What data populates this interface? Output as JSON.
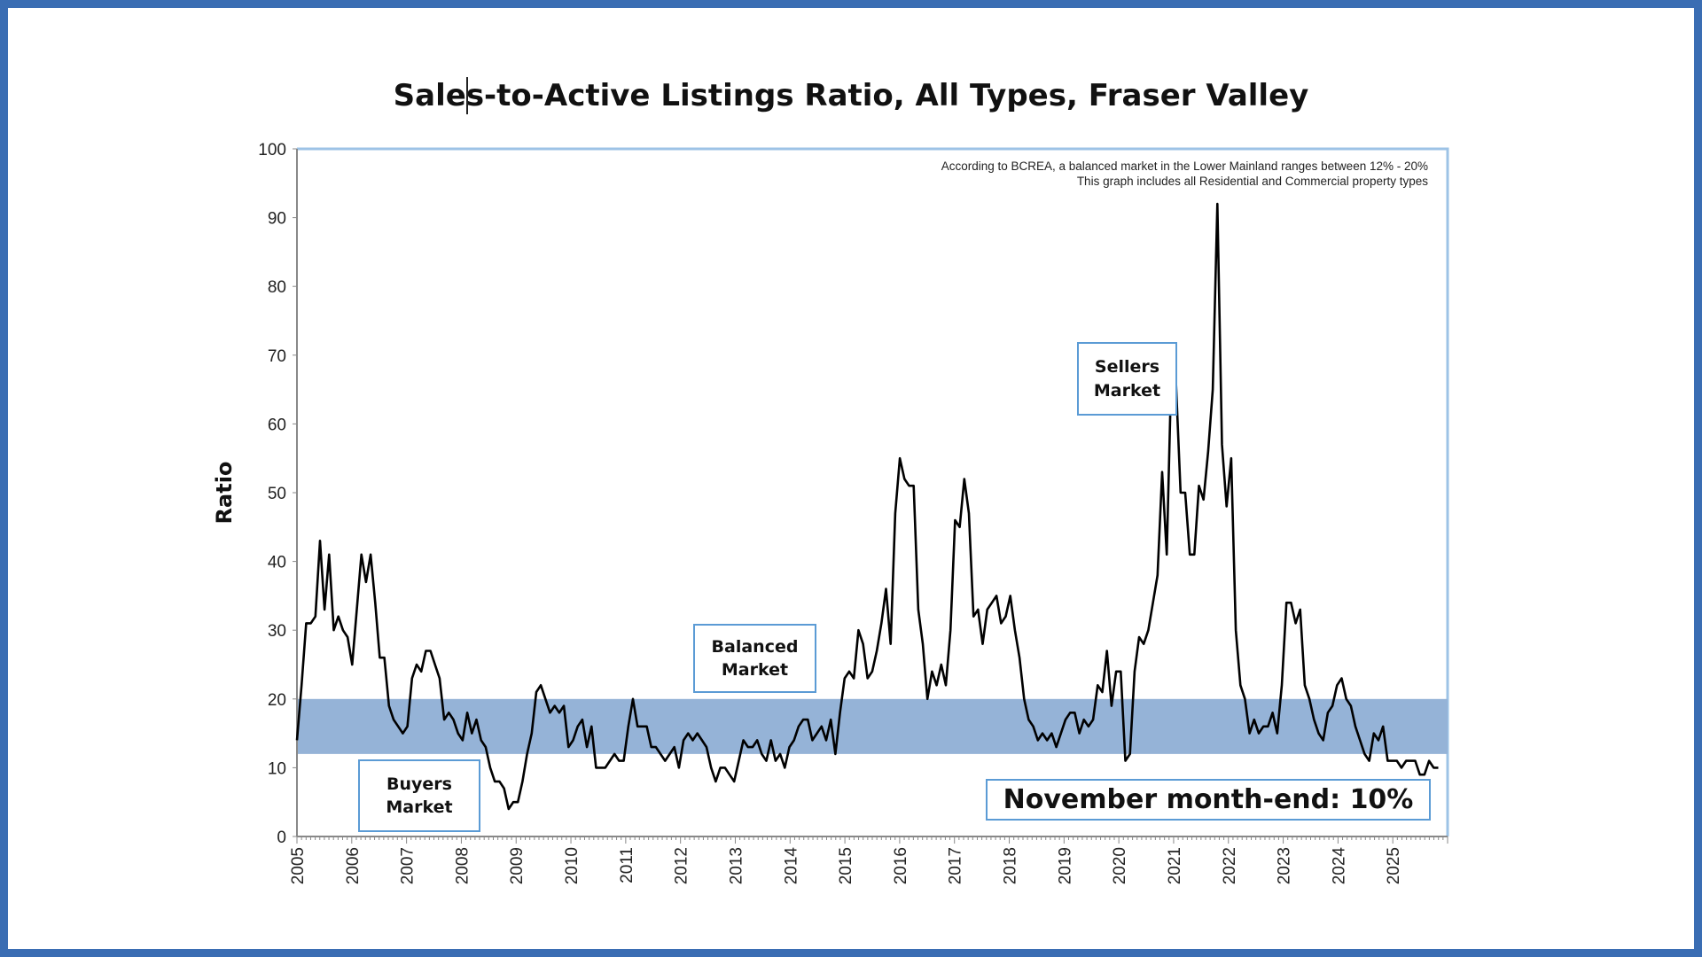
{
  "chart_data": {
    "type": "line",
    "title": "Sales-to-Active Listings Ratio, All Types, Fraser Valley",
    "xlabel": "",
    "ylabel": "Ratio",
    "ylim": [
      0,
      100
    ],
    "yticks": [
      "0",
      "10",
      "20",
      "30",
      "40",
      "50",
      "60",
      "70",
      "80",
      "90",
      "100"
    ],
    "xticks": [
      "2005",
      "2006",
      "2007",
      "2008",
      "2009",
      "2010",
      "2011",
      "2012",
      "2013",
      "2014",
      "2015",
      "2016",
      "2017",
      "2018",
      "2019",
      "2020",
      "2021",
      "2022",
      "2023",
      "2024",
      "2025"
    ],
    "x_start": 2005.0,
    "x_end": 2025.83,
    "grid": false,
    "balanced_band": {
      "low": 12,
      "high": 20,
      "color": "#95b3d7"
    },
    "line_color": "#000000",
    "notes": [
      "According to BCREA, a balanced market in the Lower Mainland ranges between 12% - 20%",
      "This graph includes all Residential and Commercial property types"
    ],
    "annotations": {
      "buyers": [
        "Buyers",
        "Market"
      ],
      "balanced": [
        "Balanced",
        "Market"
      ],
      "sellers": [
        "Sellers",
        "Market"
      ],
      "latest": "November month-end: 10%"
    },
    "series": [
      {
        "name": "Sales-to-Active Listings Ratio",
        "values": [
          14,
          22,
          31,
          31,
          32,
          43,
          33,
          41,
          30,
          32,
          30,
          29,
          25,
          33,
          41,
          37,
          41,
          34,
          26,
          26,
          19,
          17,
          16,
          15,
          16,
          23,
          25,
          24,
          27,
          27,
          25,
          23,
          17,
          18,
          17,
          15,
          14,
          18,
          15,
          17,
          14,
          13,
          10,
          8,
          8,
          7,
          4,
          5,
          5,
          8,
          12,
          15,
          21,
          22,
          20,
          18,
          19,
          18,
          19,
          13,
          14,
          16,
          17,
          13,
          16,
          10,
          10,
          10,
          11,
          12,
          11,
          11,
          16,
          20,
          16,
          16,
          16,
          13,
          13,
          12,
          11,
          12,
          13,
          10,
          14,
          15,
          14,
          15,
          14,
          13,
          10,
          8,
          10,
          10,
          9,
          8,
          11,
          14,
          13,
          13,
          14,
          12,
          11,
          14,
          11,
          12,
          10,
          13,
          14,
          16,
          17,
          17,
          14,
          15,
          16,
          14,
          17,
          12,
          18,
          23,
          24,
          23,
          30,
          28,
          23,
          24,
          27,
          31,
          36,
          28,
          47,
          55,
          52,
          51,
          51,
          33,
          28,
          20,
          24,
          22,
          25,
          22,
          30,
          46,
          45,
          52,
          47,
          32,
          33,
          28,
          33,
          34,
          35,
          31,
          32,
          35,
          30,
          26,
          20,
          17,
          16,
          14,
          15,
          14,
          15,
          13,
          15,
          17,
          18,
          18,
          15,
          17,
          16,
          17,
          22,
          21,
          27,
          19,
          24,
          24,
          11,
          12,
          24,
          29,
          28,
          30,
          34,
          38,
          53,
          41,
          68,
          66,
          50,
          50,
          41,
          41,
          51,
          49,
          56,
          65,
          92,
          57,
          48,
          55,
          30,
          22,
          20,
          15,
          17,
          15,
          16,
          16,
          18,
          15,
          22,
          34,
          34,
          31,
          33,
          22,
          20,
          17,
          15,
          14,
          18,
          19,
          22,
          23,
          20,
          19,
          16,
          14,
          12,
          11,
          15,
          14,
          16,
          11,
          11,
          11,
          10,
          11,
          11,
          11,
          9,
          9,
          11,
          10,
          10
        ]
      }
    ]
  }
}
